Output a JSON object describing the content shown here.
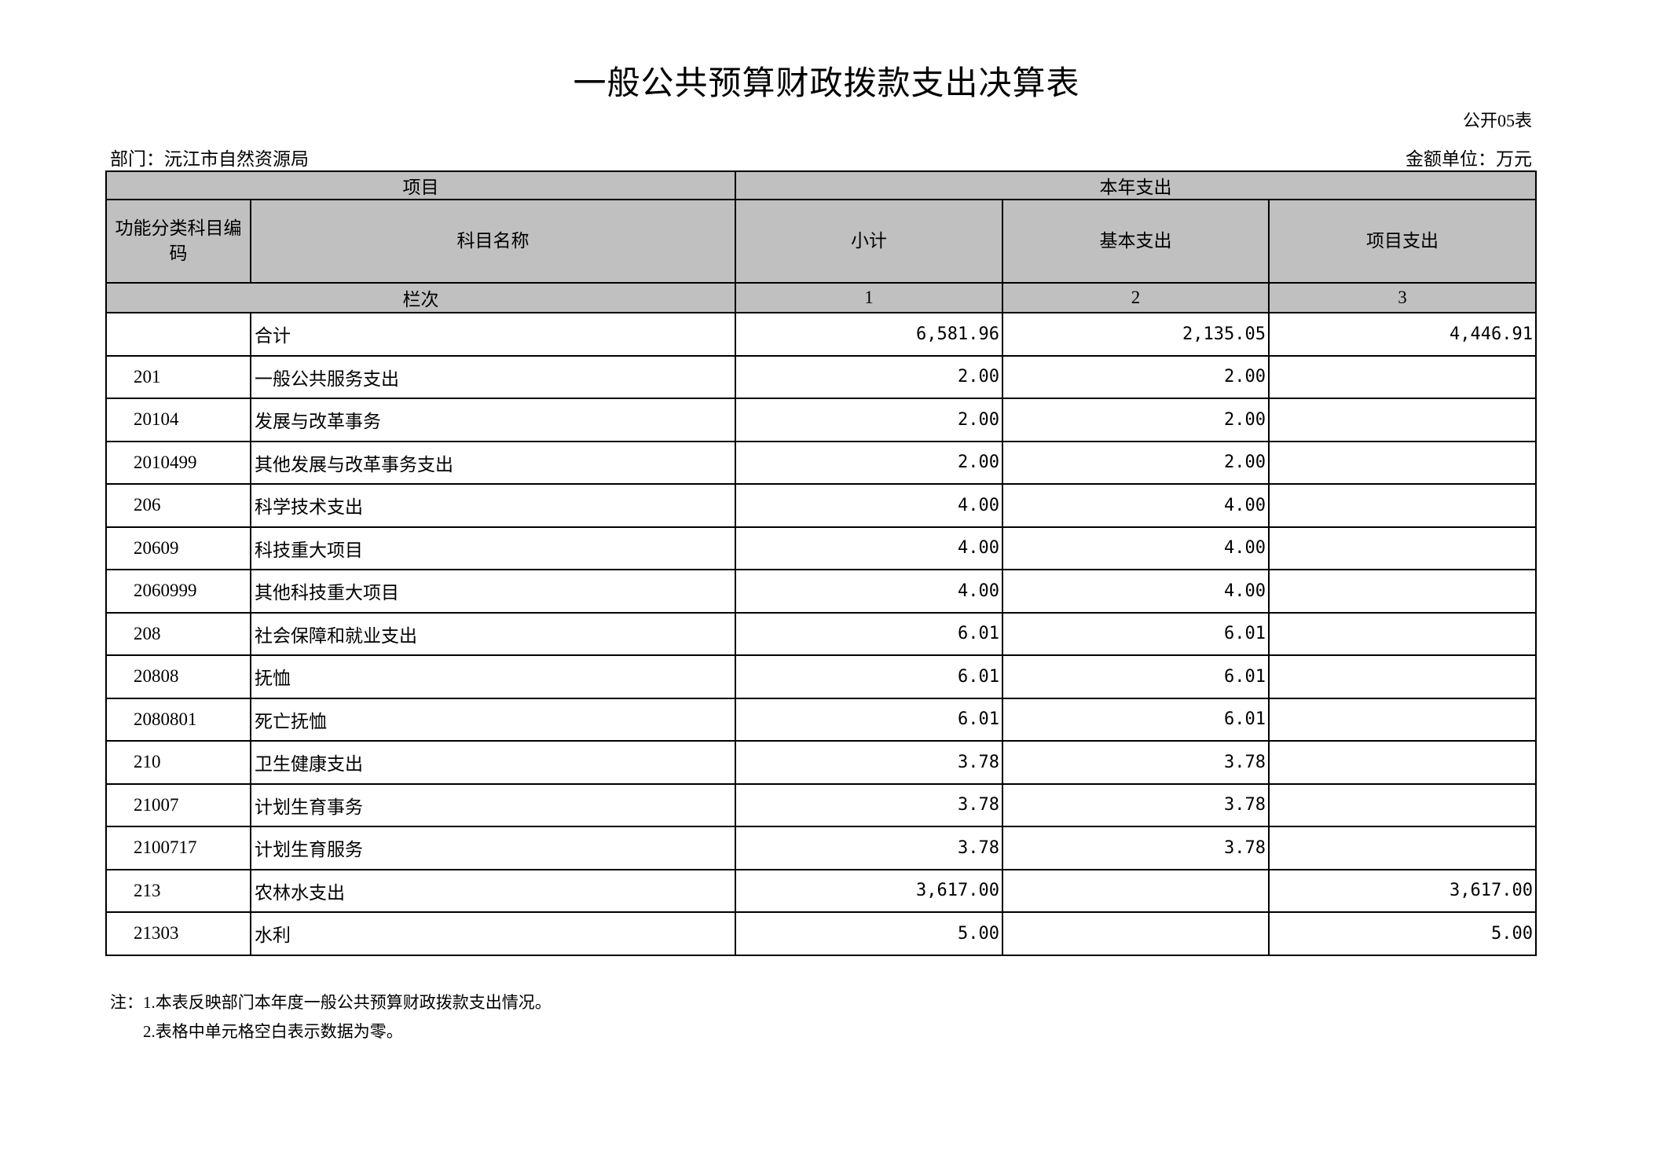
{
  "title": "一般公共预算财政拨款支出决算表",
  "table_code": "公开05表",
  "department": "部门：沅江市自然资源局",
  "unit": "金额单位：万元",
  "header": {
    "item": "项目",
    "current_year": "本年支出",
    "code": "功能分类科目编码",
    "name": "科目名称",
    "subtotal": "小计",
    "basic": "基本支出",
    "project": "项目支出",
    "column_no": "栏次",
    "col1": "1",
    "col2": "2",
    "col3": "3"
  },
  "rows": [
    {
      "code": "",
      "name": "合计",
      "subtotal": "6,581.96",
      "basic": "2,135.05",
      "project": "4,446.91"
    },
    {
      "code": "201",
      "name": "一般公共服务支出",
      "subtotal": "2.00",
      "basic": "2.00",
      "project": ""
    },
    {
      "code": "20104",
      "name": "发展与改革事务",
      "subtotal": "2.00",
      "basic": "2.00",
      "project": ""
    },
    {
      "code": "2010499",
      "name": "其他发展与改革事务支出",
      "subtotal": "2.00",
      "basic": "2.00",
      "project": ""
    },
    {
      "code": "206",
      "name": "科学技术支出",
      "subtotal": "4.00",
      "basic": "4.00",
      "project": ""
    },
    {
      "code": "20609",
      "name": "科技重大项目",
      "subtotal": "4.00",
      "basic": "4.00",
      "project": ""
    },
    {
      "code": "2060999",
      "name": "其他科技重大项目",
      "subtotal": "4.00",
      "basic": "4.00",
      "project": ""
    },
    {
      "code": "208",
      "name": "社会保障和就业支出",
      "subtotal": "6.01",
      "basic": "6.01",
      "project": ""
    },
    {
      "code": "20808",
      "name": "抚恤",
      "subtotal": "6.01",
      "basic": "6.01",
      "project": ""
    },
    {
      "code": "2080801",
      "name": "死亡抚恤",
      "subtotal": "6.01",
      "basic": "6.01",
      "project": ""
    },
    {
      "code": "210",
      "name": "卫生健康支出",
      "subtotal": "3.78",
      "basic": "3.78",
      "project": ""
    },
    {
      "code": "21007",
      "name": "计划生育事务",
      "subtotal": "3.78",
      "basic": "3.78",
      "project": ""
    },
    {
      "code": "2100717",
      "name": "计划生育服务",
      "subtotal": "3.78",
      "basic": "3.78",
      "project": ""
    },
    {
      "code": "213",
      "name": "农林水支出",
      "subtotal": "3,617.00",
      "basic": "",
      "project": "3,617.00"
    },
    {
      "code": "21303",
      "name": "水利",
      "subtotal": "5.00",
      "basic": "",
      "project": "5.00"
    }
  ],
  "notes": [
    "注：1.本表反映部门本年度一般公共预算财政拨款支出情况。",
    "2.表格中单元格空白表示数据为零。"
  ]
}
